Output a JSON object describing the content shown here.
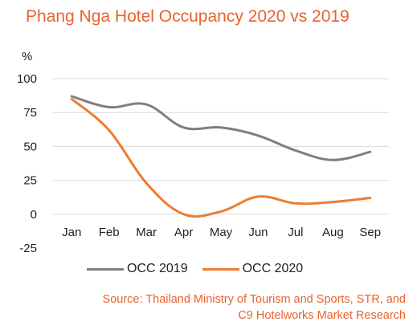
{
  "chart_data": {
    "type": "line",
    "title": "Phang Nga Hotel Occupancy 2020 vs 2019",
    "ylabel": "%",
    "xlabel": "",
    "categories": [
      "Jan",
      "Feb",
      "Mar",
      "Apr",
      "May",
      "Jun",
      "Jul",
      "Aug",
      "Sep"
    ],
    "ylim": [
      -25,
      100
    ],
    "yticks": [
      "100",
      "75",
      "50",
      "25",
      "0",
      "-25"
    ],
    "ytick_values": [
      100,
      75,
      50,
      25,
      0,
      -25
    ],
    "grid": true,
    "legend_position": "bottom",
    "series": [
      {
        "name": "OCC 2019",
        "color": "#7f7f7f",
        "values": [
          87,
          79,
          81,
          64,
          64,
          58,
          47,
          40,
          46
        ]
      },
      {
        "name": "OCC 2020",
        "color": "#ed7d31",
        "values": [
          85,
          62,
          23,
          0,
          2,
          13,
          8,
          9,
          12
        ]
      }
    ],
    "source": [
      "Source: Thailand Ministry of Tourism and Sports, STR, and",
      "C9 Hotelworks Market Research"
    ]
  }
}
